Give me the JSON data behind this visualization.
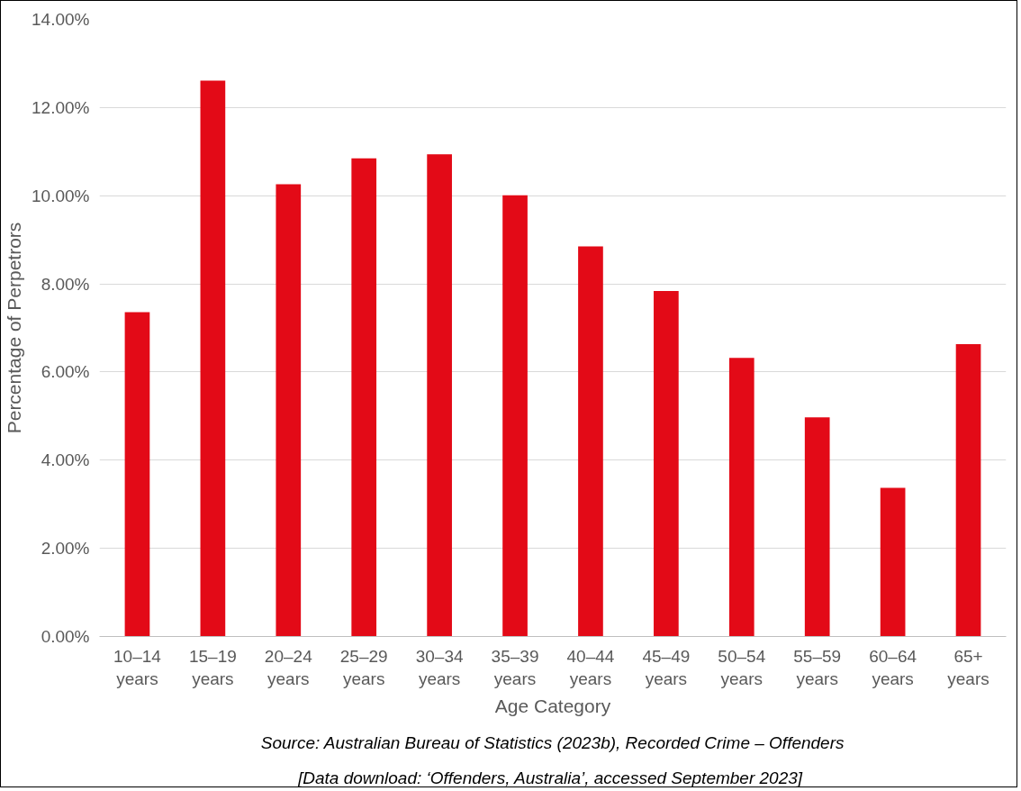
{
  "chart_data": {
    "type": "bar",
    "xlabel": "Age Category",
    "ylabel": "Percentage of Perpetrors",
    "categories": [
      "10–14 years",
      "15–19 years",
      "20–24 years",
      "25–29 years",
      "30–34 years",
      "35–39 years",
      "40–44 years",
      "45–49 years",
      "50–54 years",
      "55–59 years",
      "60–64 years",
      "65+ years"
    ],
    "values": [
      7.36,
      12.61,
      10.26,
      10.85,
      10.94,
      10.01,
      8.85,
      7.84,
      6.32,
      4.97,
      3.37,
      6.63
    ],
    "color": "#e30a17",
    "ylim": [
      0,
      14
    ],
    "yticks": [
      {
        "value": 0,
        "label": "0.00%"
      },
      {
        "value": 2,
        "label": "2.00%"
      },
      {
        "value": 4,
        "label": "4.00%"
      },
      {
        "value": 6,
        "label": "6.00%"
      },
      {
        "value": 8,
        "label": "8.00%"
      },
      {
        "value": 10,
        "label": "10.00%"
      },
      {
        "value": 12,
        "label": "12.00%"
      },
      {
        "value": 14,
        "label": "14.00%"
      }
    ],
    "grid": "y",
    "annotations": [
      "Source: Australian Bureau of Statistics (2023b), Recorded Crime – Offenders",
      "[Data download: ‘Offenders, Australia’,  accessed September 2023]"
    ]
  }
}
